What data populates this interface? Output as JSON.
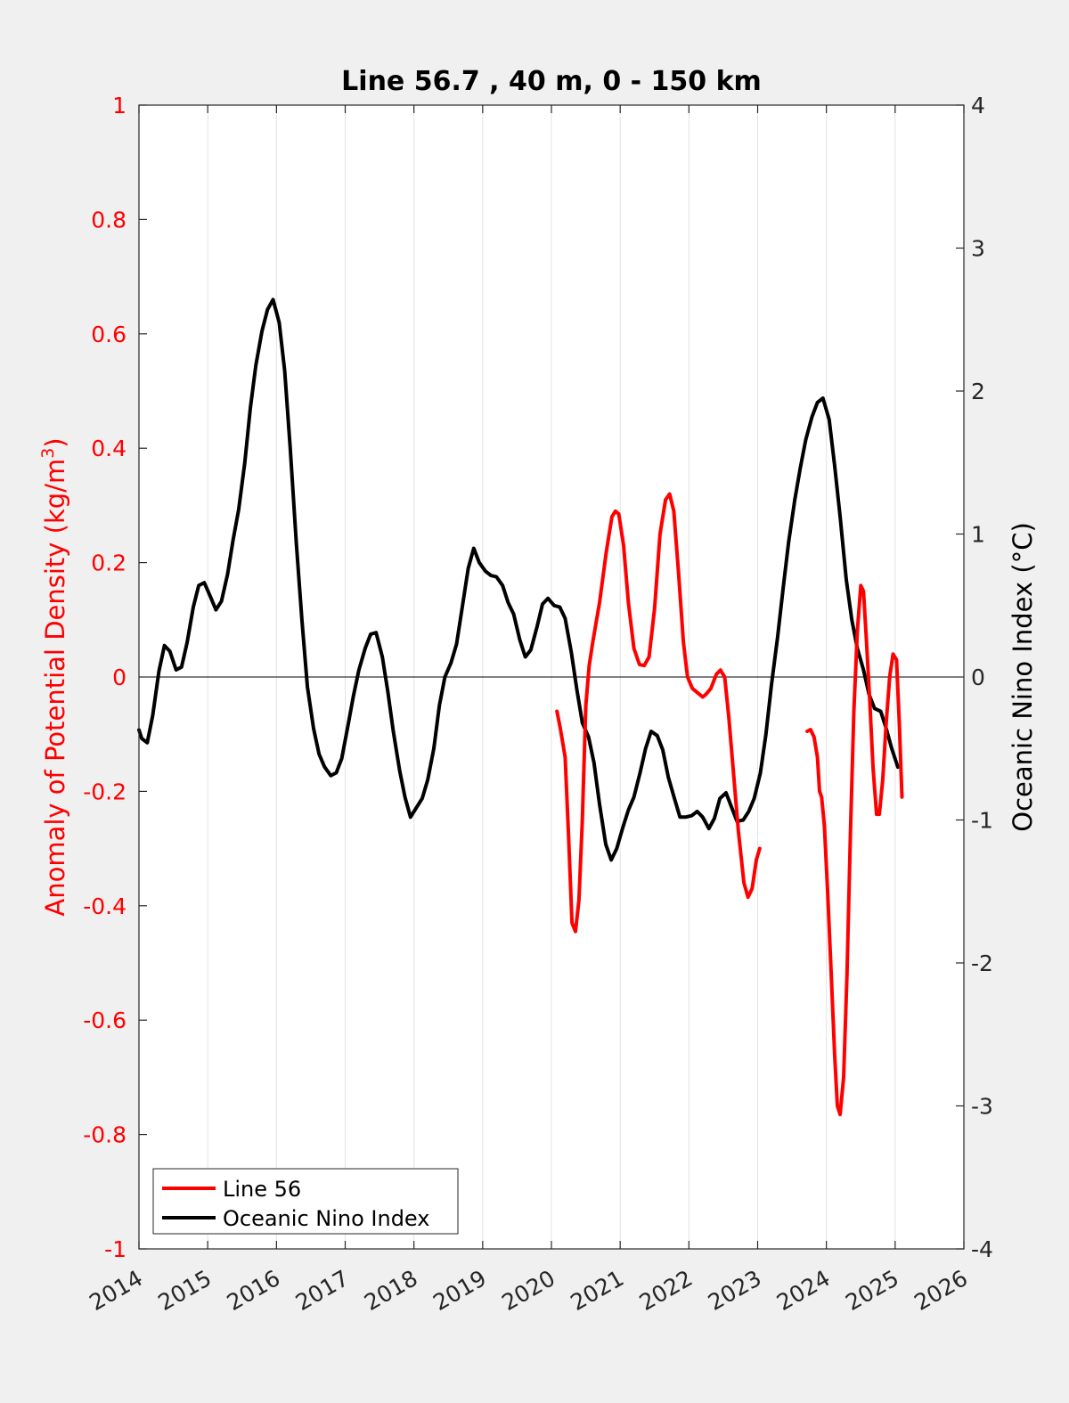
{
  "chart_data": {
    "type": "line",
    "title": "Line 56.7 , 40 m, 0 - 150 km",
    "xlabel": "",
    "ylabel_left": {
      "base": "Anomaly of Potential Density (kg/m",
      "superscript": "3",
      "close": ")"
    },
    "ylabel_right": "Oceanic Nino Index (°C)",
    "xlim": [
      2014,
      2026
    ],
    "ylim_left": [
      -1,
      1
    ],
    "ylim_right": [
      -4,
      4
    ],
    "grid": "vertical",
    "zero_line": true,
    "legend_position": "bottom-left",
    "x_ticks": [
      "2014",
      "2015",
      "2016",
      "2017",
      "2018",
      "2019",
      "2020",
      "2021",
      "2022",
      "2023",
      "2024",
      "2025",
      "2026"
    ],
    "y_ticks_left": [
      "1",
      "0.8",
      "0.6",
      "0.4",
      "0.2",
      "0",
      "-0.2",
      "-0.4",
      "-0.6",
      "-0.8",
      "-1"
    ],
    "y_ticks_right": [
      "4",
      "3",
      "2",
      "1",
      "0",
      "-1",
      "-2",
      "-3",
      "-4"
    ],
    "series": [
      {
        "name": "Line 56",
        "axis": "left",
        "color": "#ff0000",
        "segments": [
          [
            [
              2020.08,
              -0.06
            ],
            [
              2020.13,
              -0.09
            ],
            [
              2020.2,
              -0.14
            ],
            [
              2020.25,
              -0.28
            ],
            [
              2020.3,
              -0.43
            ],
            [
              2020.35,
              -0.445
            ],
            [
              2020.4,
              -0.39
            ],
            [
              2020.45,
              -0.25
            ],
            [
              2020.5,
              -0.05
            ],
            [
              2020.55,
              0.02
            ],
            [
              2020.6,
              0.06
            ],
            [
              2020.7,
              0.13
            ],
            [
              2020.8,
              0.22
            ],
            [
              2020.88,
              0.28
            ],
            [
              2020.93,
              0.29
            ],
            [
              2020.98,
              0.285
            ],
            [
              2021.05,
              0.23
            ],
            [
              2021.12,
              0.13
            ],
            [
              2021.2,
              0.05
            ],
            [
              2021.28,
              0.022
            ],
            [
              2021.35,
              0.02
            ],
            [
              2021.42,
              0.035
            ],
            [
              2021.5,
              0.12
            ],
            [
              2021.58,
              0.25
            ],
            [
              2021.66,
              0.31
            ],
            [
              2021.72,
              0.32
            ],
            [
              2021.78,
              0.29
            ],
            [
              2021.85,
              0.18
            ],
            [
              2021.92,
              0.06
            ],
            [
              2021.98,
              0.0
            ],
            [
              2022.05,
              -0.02
            ],
            [
              2022.12,
              -0.027
            ],
            [
              2022.2,
              -0.035
            ],
            [
              2022.25,
              -0.03
            ],
            [
              2022.32,
              -0.02
            ],
            [
              2022.4,
              0.005
            ],
            [
              2022.46,
              0.012
            ],
            [
              2022.52,
              0.0
            ],
            [
              2022.58,
              -0.07
            ],
            [
              2022.65,
              -0.17
            ],
            [
              2022.72,
              -0.27
            ],
            [
              2022.8,
              -0.36
            ],
            [
              2022.86,
              -0.385
            ],
            [
              2022.92,
              -0.37
            ],
            [
              2022.98,
              -0.32
            ],
            [
              2023.03,
              -0.3
            ]
          ],
          [
            [
              2023.72,
              -0.095
            ],
            [
              2023.77,
              -0.092
            ],
            [
              2023.82,
              -0.105
            ],
            [
              2023.87,
              -0.14
            ],
            [
              2023.9,
              -0.2
            ],
            [
              2023.93,
              -0.21
            ],
            [
              2023.97,
              -0.26
            ],
            [
              2024.02,
              -0.38
            ],
            [
              2024.07,
              -0.52
            ],
            [
              2024.12,
              -0.66
            ],
            [
              2024.16,
              -0.75
            ],
            [
              2024.2,
              -0.765
            ],
            [
              2024.25,
              -0.7
            ],
            [
              2024.3,
              -0.52
            ],
            [
              2024.35,
              -0.27
            ],
            [
              2024.4,
              -0.06
            ],
            [
              2024.45,
              0.08
            ],
            [
              2024.5,
              0.16
            ],
            [
              2024.54,
              0.15
            ],
            [
              2024.58,
              0.07
            ],
            [
              2024.63,
              -0.04
            ],
            [
              2024.68,
              -0.16
            ],
            [
              2024.73,
              -0.24
            ],
            [
              2024.77,
              -0.24
            ],
            [
              2024.82,
              -0.18
            ],
            [
              2024.87,
              -0.08
            ],
            [
              2024.92,
              0.0
            ],
            [
              2024.97,
              0.04
            ],
            [
              2025.02,
              0.03
            ],
            [
              2025.06,
              -0.08
            ],
            [
              2025.1,
              -0.21
            ]
          ]
        ]
      },
      {
        "name": "Oceanic Nino Index",
        "axis": "right",
        "color": "#000000",
        "segments": [
          [
            [
              2014.0,
              -0.37
            ],
            [
              2014.04,
              -0.43
            ],
            [
              2014.12,
              -0.46
            ],
            [
              2014.2,
              -0.27
            ],
            [
              2014.29,
              0.04
            ],
            [
              2014.37,
              0.22
            ],
            [
              2014.45,
              0.18
            ],
            [
              2014.54,
              0.05
            ],
            [
              2014.62,
              0.07
            ],
            [
              2014.7,
              0.24
            ],
            [
              2014.79,
              0.49
            ],
            [
              2014.87,
              0.64
            ],
            [
              2014.95,
              0.66
            ],
            [
              2015.04,
              0.56
            ],
            [
              2015.12,
              0.47
            ],
            [
              2015.2,
              0.53
            ],
            [
              2015.29,
              0.72
            ],
            [
              2015.37,
              0.96
            ],
            [
              2015.45,
              1.17
            ],
            [
              2015.54,
              1.5
            ],
            [
              2015.62,
              1.88
            ],
            [
              2015.7,
              2.18
            ],
            [
              2015.79,
              2.42
            ],
            [
              2015.87,
              2.57
            ],
            [
              2015.95,
              2.64
            ],
            [
              2016.04,
              2.48
            ],
            [
              2016.12,
              2.14
            ],
            [
              2016.2,
              1.6
            ],
            [
              2016.29,
              0.93
            ],
            [
              2016.37,
              0.4
            ],
            [
              2016.45,
              -0.07
            ],
            [
              2016.54,
              -0.36
            ],
            [
              2016.62,
              -0.54
            ],
            [
              2016.7,
              -0.63
            ],
            [
              2016.79,
              -0.69
            ],
            [
              2016.87,
              -0.67
            ],
            [
              2016.95,
              -0.57
            ],
            [
              2017.04,
              -0.34
            ],
            [
              2017.12,
              -0.13
            ],
            [
              2017.2,
              0.05
            ],
            [
              2017.29,
              0.2
            ],
            [
              2017.37,
              0.3
            ],
            [
              2017.45,
              0.31
            ],
            [
              2017.54,
              0.14
            ],
            [
              2017.62,
              -0.1
            ],
            [
              2017.7,
              -0.38
            ],
            [
              2017.79,
              -0.65
            ],
            [
              2017.87,
              -0.84
            ],
            [
              2017.95,
              -0.98
            ],
            [
              2018.04,
              -0.91
            ],
            [
              2018.12,
              -0.85
            ],
            [
              2018.2,
              -0.72
            ],
            [
              2018.29,
              -0.5
            ],
            [
              2018.37,
              -0.2
            ],
            [
              2018.45,
              0.0
            ],
            [
              2018.54,
              0.1
            ],
            [
              2018.62,
              0.23
            ],
            [
              2018.7,
              0.48
            ],
            [
              2018.79,
              0.76
            ],
            [
              2018.87,
              0.9
            ],
            [
              2018.95,
              0.8
            ],
            [
              2019.04,
              0.74
            ],
            [
              2019.12,
              0.71
            ],
            [
              2019.2,
              0.7
            ],
            [
              2019.29,
              0.64
            ],
            [
              2019.37,
              0.52
            ],
            [
              2019.45,
              0.44
            ],
            [
              2019.54,
              0.26
            ],
            [
              2019.62,
              0.14
            ],
            [
              2019.7,
              0.19
            ],
            [
              2019.79,
              0.35
            ],
            [
              2019.87,
              0.51
            ],
            [
              2019.95,
              0.55
            ],
            [
              2020.04,
              0.5
            ],
            [
              2020.12,
              0.49
            ],
            [
              2020.2,
              0.41
            ],
            [
              2020.29,
              0.17
            ],
            [
              2020.37,
              -0.09
            ],
            [
              2020.45,
              -0.32
            ],
            [
              2020.54,
              -0.42
            ],
            [
              2020.62,
              -0.6
            ],
            [
              2020.7,
              -0.89
            ],
            [
              2020.79,
              -1.17
            ],
            [
              2020.87,
              -1.28
            ],
            [
              2020.95,
              -1.2
            ],
            [
              2021.04,
              -1.05
            ],
            [
              2021.12,
              -0.93
            ],
            [
              2021.2,
              -0.84
            ],
            [
              2021.29,
              -0.67
            ],
            [
              2021.37,
              -0.5
            ],
            [
              2021.45,
              -0.38
            ],
            [
              2021.54,
              -0.41
            ],
            [
              2021.62,
              -0.51
            ],
            [
              2021.7,
              -0.7
            ],
            [
              2021.79,
              -0.85
            ],
            [
              2021.87,
              -0.98
            ],
            [
              2021.95,
              -0.98
            ],
            [
              2022.04,
              -0.97
            ],
            [
              2022.12,
              -0.94
            ],
            [
              2022.2,
              -0.98
            ],
            [
              2022.29,
              -1.06
            ],
            [
              2022.37,
              -0.99
            ],
            [
              2022.45,
              -0.85
            ],
            [
              2022.54,
              -0.81
            ],
            [
              2022.62,
              -0.91
            ],
            [
              2022.7,
              -1.01
            ],
            [
              2022.79,
              -1.0
            ],
            [
              2022.87,
              -0.94
            ],
            [
              2022.95,
              -0.85
            ],
            [
              2023.04,
              -0.67
            ],
            [
              2023.12,
              -0.4
            ],
            [
              2023.2,
              -0.06
            ],
            [
              2023.29,
              0.28
            ],
            [
              2023.37,
              0.62
            ],
            [
              2023.45,
              0.94
            ],
            [
              2023.54,
              1.24
            ],
            [
              2023.62,
              1.46
            ],
            [
              2023.7,
              1.66
            ],
            [
              2023.79,
              1.82
            ],
            [
              2023.87,
              1.92
            ],
            [
              2023.95,
              1.95
            ],
            [
              2024.04,
              1.8
            ],
            [
              2024.12,
              1.48
            ],
            [
              2024.2,
              1.12
            ],
            [
              2024.29,
              0.68
            ],
            [
              2024.37,
              0.4
            ],
            [
              2024.45,
              0.2
            ],
            [
              2024.54,
              0.05
            ],
            [
              2024.62,
              -0.12
            ],
            [
              2024.7,
              -0.22
            ],
            [
              2024.79,
              -0.24
            ],
            [
              2024.87,
              -0.36
            ],
            [
              2024.95,
              -0.5
            ],
            [
              2025.04,
              -0.63
            ]
          ]
        ]
      }
    ]
  }
}
